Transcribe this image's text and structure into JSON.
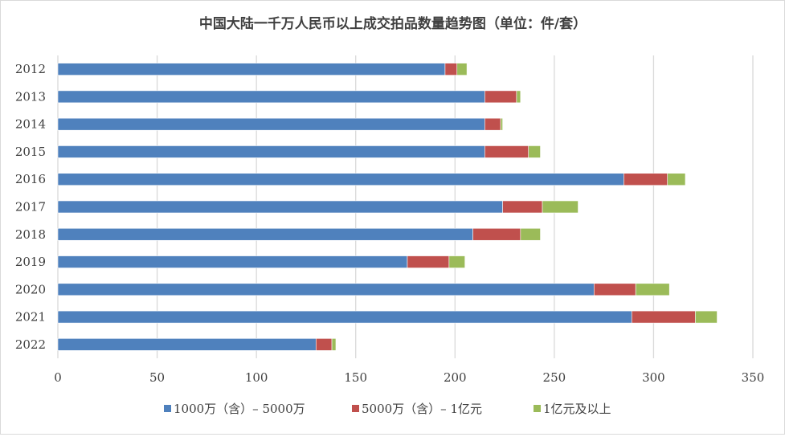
{
  "chart_data": {
    "type": "bar",
    "orientation": "horizontal",
    "stacked": true,
    "title": "中国大陆一千万人民币以上成交拍品数量趋势图（单位：件/套）",
    "categories": [
      "2012",
      "2013",
      "2014",
      "2015",
      "2016",
      "2017",
      "2018",
      "2019",
      "2020",
      "2021",
      "2022"
    ],
    "series": [
      {
        "name": "1000万（含）– 5000万",
        "color": "#4f81bd",
        "values": [
          195,
          215,
          215,
          215,
          285,
          224,
          209,
          176,
          270,
          289,
          130
        ]
      },
      {
        "name": "5000万（含）– 1亿元",
        "color": "#c0504d",
        "values": [
          6,
          16,
          8,
          22,
          22,
          20,
          24,
          21,
          21,
          32,
          8
        ]
      },
      {
        "name": "1亿元及以上",
        "color": "#9bbb59",
        "values": [
          5,
          2,
          1,
          6,
          9,
          18,
          10,
          8,
          17,
          11,
          2
        ]
      }
    ],
    "xlim": [
      0,
      350
    ],
    "xticks": [
      0,
      50,
      100,
      150,
      200,
      250,
      300,
      350
    ],
    "grid": true,
    "legend": "bottom"
  }
}
